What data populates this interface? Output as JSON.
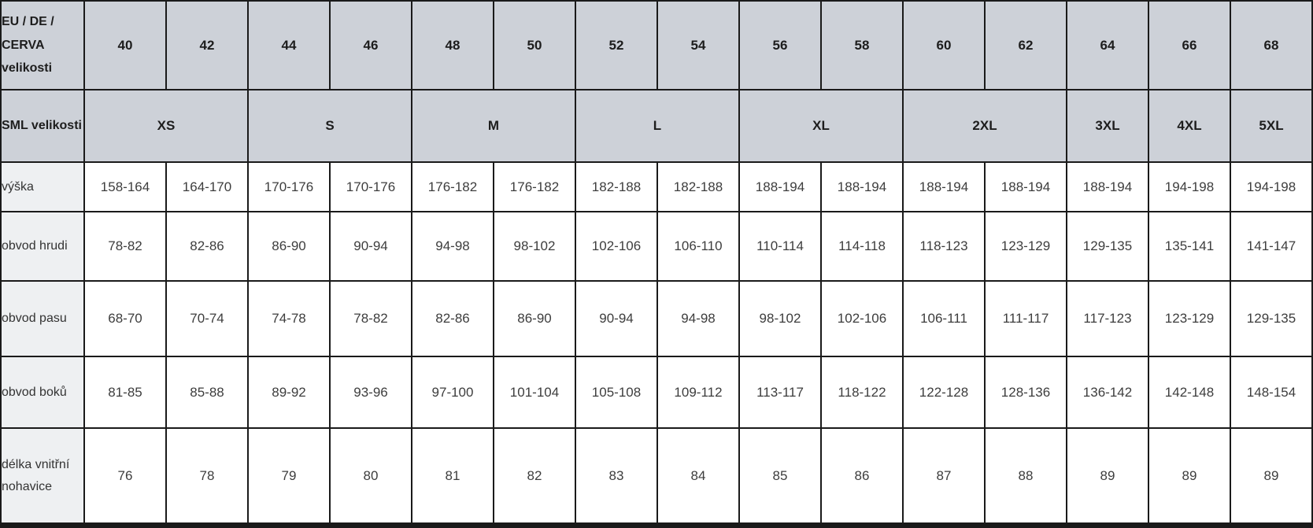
{
  "chart_data": {
    "type": "table",
    "header_rows": [
      {
        "label": "EU / DE / CERVA velikosti",
        "cells": [
          {
            "text": "40",
            "span": 1
          },
          {
            "text": "42",
            "span": 1
          },
          {
            "text": "44",
            "span": 1
          },
          {
            "text": "46",
            "span": 1
          },
          {
            "text": "48",
            "span": 1
          },
          {
            "text": "50",
            "span": 1
          },
          {
            "text": "52",
            "span": 1
          },
          {
            "text": "54",
            "span": 1
          },
          {
            "text": "56",
            "span": 1
          },
          {
            "text": "58",
            "span": 1
          },
          {
            "text": "60",
            "span": 1
          },
          {
            "text": "62",
            "span": 1
          },
          {
            "text": "64",
            "span": 1
          },
          {
            "text": "66",
            "span": 1
          },
          {
            "text": "68",
            "span": 1
          }
        ]
      },
      {
        "label": "SML velikosti",
        "cells": [
          {
            "text": "XS",
            "span": 2
          },
          {
            "text": "S",
            "span": 2
          },
          {
            "text": "M",
            "span": 2
          },
          {
            "text": "L",
            "span": 2
          },
          {
            "text": "XL",
            "span": 2
          },
          {
            "text": "2XL",
            "span": 2
          },
          {
            "text": "3XL",
            "span": 1
          },
          {
            "text": "4XL",
            "span": 1
          },
          {
            "text": "5XL",
            "span": 1
          }
        ]
      }
    ],
    "body_rows": [
      {
        "label": "výška",
        "values": [
          "158-164",
          "164-170",
          "170-176",
          "170-176",
          "176-182",
          "176-182",
          "182-188",
          "182-188",
          "188-194",
          "188-194",
          "188-194",
          "188-194",
          "188-194",
          "194-198",
          "194-198"
        ]
      },
      {
        "label": "obvod hrudi",
        "values": [
          "78-82",
          "82-86",
          "86-90",
          "90-94",
          "94-98",
          "98-102",
          "102-106",
          "106-110",
          "110-114",
          "114-118",
          "118-123",
          "123-129",
          "129-135",
          "135-141",
          "141-147"
        ]
      },
      {
        "label": "obvod pasu",
        "values": [
          "68-70",
          "70-74",
          "74-78",
          "78-82",
          "82-86",
          "86-90",
          "90-94",
          "94-98",
          "98-102",
          "102-106",
          "106-111",
          "111-117",
          "117-123",
          "123-129",
          "129-135"
        ]
      },
      {
        "label": "obvod boků",
        "values": [
          "81-85",
          "85-88",
          "89-92",
          "93-96",
          "97-100",
          "101-104",
          "105-108",
          "109-112",
          "113-117",
          "118-122",
          "122-128",
          "128-136",
          "136-142",
          "142-148",
          "148-154"
        ]
      },
      {
        "label": "délka vnitřní nohavice",
        "values": [
          "76",
          "78",
          "79",
          "80",
          "81",
          "82",
          "83",
          "84",
          "85",
          "86",
          "87",
          "88",
          "89",
          "89",
          "89"
        ]
      }
    ]
  },
  "colors": {
    "header_bg": "#cdd1d8",
    "label_bg": "#eef0f2",
    "border": "#1a1a1a",
    "header_text": "#1d1d1d",
    "value_text": "#3d3d3d"
  }
}
